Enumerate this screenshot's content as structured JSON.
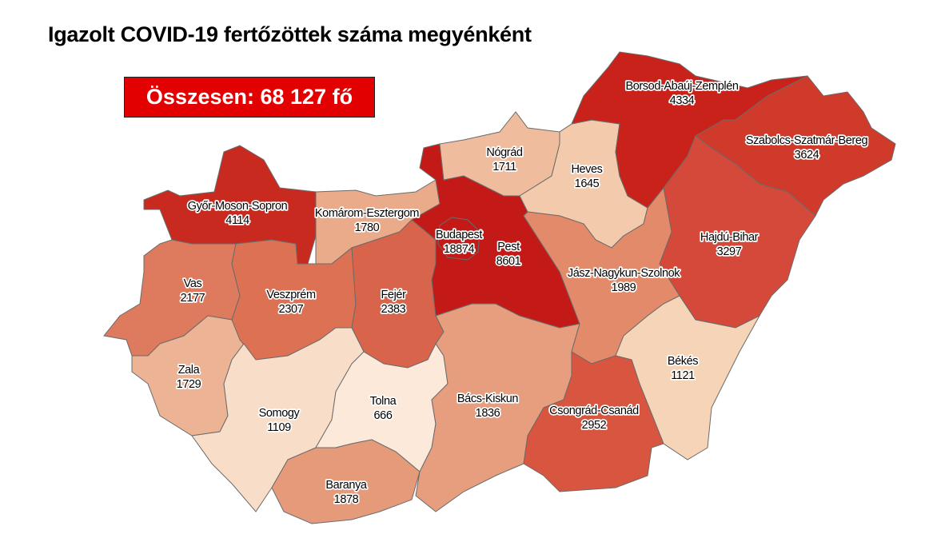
{
  "title": "Igazolt COVID-19 fertőzöttek száma megyénként",
  "total_label": "Összesen: 68 127 fő",
  "colors": {
    "total_box": "#e30000"
  },
  "counties": {
    "gyor": {
      "name": "Győr-Moson-Sopron",
      "value": "4114",
      "color": "#c92a20"
    },
    "komarom": {
      "name": "Komárom-Esztergom",
      "value": "1780",
      "color": "#eaab8a"
    },
    "vas": {
      "name": "Vas",
      "value": "2177",
      "color": "#de7a5d"
    },
    "zala": {
      "name": "Zala",
      "value": "1729",
      "color": "#ecb494"
    },
    "veszprem": {
      "name": "Veszprém",
      "value": "2307",
      "color": "#dc7154"
    },
    "fejer": {
      "name": "Fejér",
      "value": "2383",
      "color": "#d9644c"
    },
    "somogy": {
      "name": "Somogy",
      "value": "1109",
      "color": "#f8dec9"
    },
    "tolna": {
      "name": "Tolna",
      "value": "666",
      "color": "#fce9da"
    },
    "baranya": {
      "name": "Baranya",
      "value": "1878",
      "color": "#e59b7a"
    },
    "bacs": {
      "name": "Bács-Kiskun",
      "value": "1836",
      "color": "#e69e7e"
    },
    "pest": {
      "name": "Pest",
      "value": "8601",
      "color": "#c41a17"
    },
    "budapest": {
      "name": "Budapest",
      "value": "18874",
      "color": "#c41a17"
    },
    "nograd": {
      "name": "Nógrád",
      "value": "1711",
      "color": "#efbc9e"
    },
    "heves": {
      "name": "Heves",
      "value": "1645",
      "color": "#f3caab"
    },
    "borsod": {
      "name": "Borsod-Abaúj-Zemplén",
      "value": "4334",
      "color": "#c8221b"
    },
    "szabolcs": {
      "name": "Szabolcs-Szatmár-Bereg",
      "value": "3624",
      "color": "#cf3a2b"
    },
    "hajdu": {
      "name": "Hajdú-Bihar",
      "value": "3297",
      "color": "#d4493a"
    },
    "jasz": {
      "name": "Jász-Nagykun-Szolnok",
      "value": "1989",
      "color": "#e38a6b"
    },
    "bekes": {
      "name": "Békés",
      "value": "1121",
      "color": "#f5d4b8"
    },
    "csongrad": {
      "name": "Csongrád-Csanád",
      "value": "2952",
      "color": "#d8553f"
    }
  }
}
